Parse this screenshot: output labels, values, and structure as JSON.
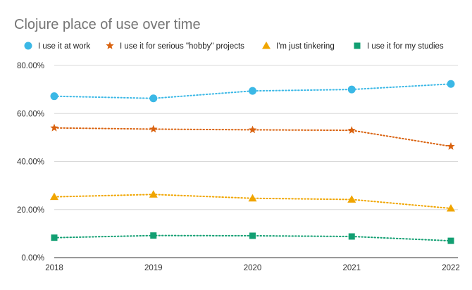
{
  "chart_data": {
    "type": "line",
    "title": "Clojure place of use over time",
    "xlabel": "",
    "ylabel": "",
    "categories": [
      "2018",
      "2019",
      "2020",
      "2021",
      "2022"
    ],
    "ylim": [
      0,
      80
    ],
    "yticks": [
      "0.00%",
      "20.00%",
      "40.00%",
      "60.00%",
      "80.00%"
    ],
    "ytick_values": [
      0,
      20,
      40,
      60,
      80
    ],
    "grid": true,
    "legend_position": "top",
    "line_style": "dotted",
    "series": [
      {
        "name": "I use it at work",
        "values": [
          67.2,
          66.3,
          69.4,
          70.0,
          72.3
        ],
        "color": "#3bb8e6",
        "marker": "circle"
      },
      {
        "name": "I use it for serious \"hobby\" projects",
        "values": [
          54.0,
          53.5,
          53.2,
          53.0,
          46.3
        ],
        "color": "#d9620f",
        "marker": "star"
      },
      {
        "name": "I'm just tinkering",
        "values": [
          25.3,
          26.3,
          24.7,
          24.2,
          20.5
        ],
        "color": "#f0a500",
        "marker": "triangle"
      },
      {
        "name": "I use it for my studies",
        "values": [
          8.3,
          9.2,
          9.1,
          8.8,
          7.0
        ],
        "color": "#129f72",
        "marker": "square"
      }
    ]
  }
}
